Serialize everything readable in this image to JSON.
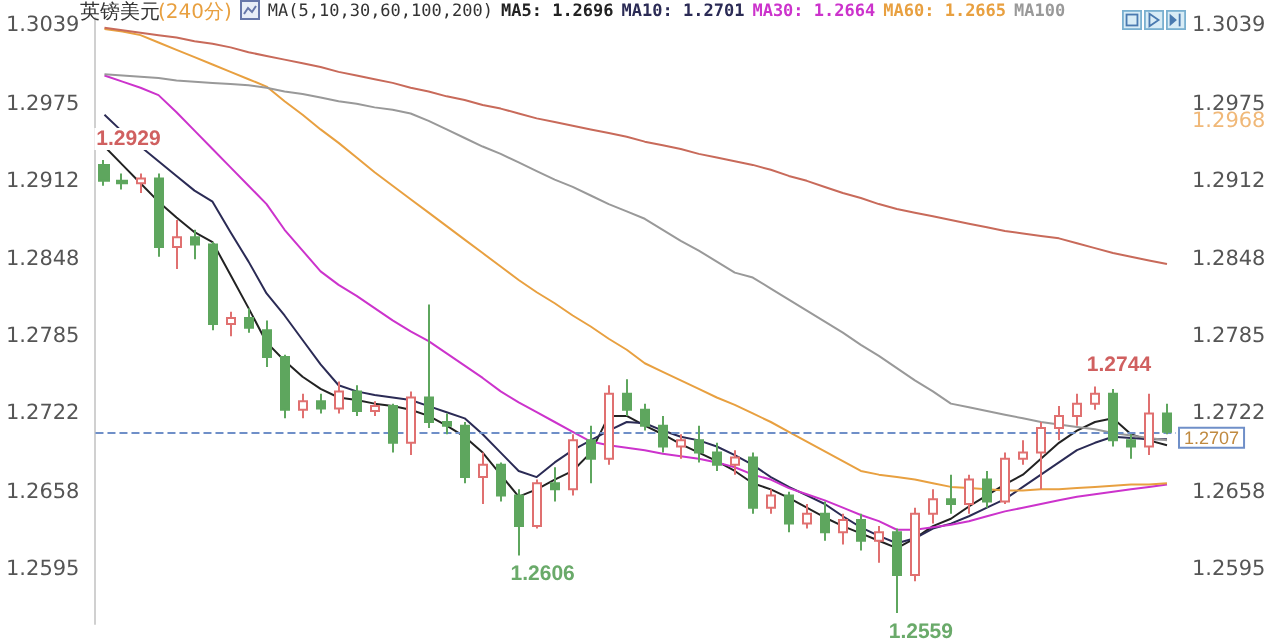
{
  "chart_data": {
    "type": "candlestick",
    "title": "英镑美元",
    "subtitle": "(240分)",
    "legend_title": "MA(5,10,30,60,100,200)",
    "legend": "top",
    "tick_labels": "y",
    "categories": [
      null,
      null,
      null,
      null,
      null,
      null,
      null,
      null,
      null,
      null,
      null,
      null,
      null,
      null,
      null,
      null,
      null,
      null,
      null,
      null,
      null,
      null,
      null,
      null,
      null,
      null,
      null,
      null,
      null,
      null,
      null,
      null,
      null,
      null,
      null,
      null,
      null,
      null,
      null,
      null,
      null,
      null,
      null,
      null,
      null,
      null,
      null,
      null,
      null,
      null,
      null,
      null,
      null,
      null,
      null,
      null,
      null,
      null,
      null,
      null
    ],
    "ylim": [
      1.255,
      1.3045
    ],
    "yticks": [
      1.3039,
      1.2975,
      1.2912,
      1.2848,
      1.2785,
      1.2722,
      1.2658,
      1.2595
    ],
    "y2lim": [
      1.255,
      1.3045
    ],
    "y2ticks": [
      1.3039,
      1.2975,
      1.2912,
      1.2848,
      1.2785,
      1.2722,
      1.2658,
      1.2595
    ],
    "ohlc": [
      [
        1.2925,
        1.2929,
        1.2908,
        1.2912
      ],
      [
        1.2912,
        1.2918,
        1.2905,
        1.291
      ],
      [
        1.291,
        1.2918,
        1.2902,
        1.2914
      ],
      [
        1.2914,
        1.2918,
        1.285,
        1.2858
      ],
      [
        1.2858,
        1.288,
        1.284,
        1.2866
      ],
      [
        1.2866,
        1.2872,
        1.2848,
        1.286
      ],
      [
        1.286,
        1.2862,
        1.279,
        1.2795
      ],
      [
        1.2795,
        1.2805,
        1.2785,
        1.28
      ],
      [
        1.28,
        1.2808,
        1.2788,
        1.2792
      ],
      [
        1.279,
        1.2798,
        1.276,
        1.2768
      ],
      [
        1.2768,
        1.277,
        1.2718,
        1.2725
      ],
      [
        1.2725,
        1.2738,
        1.2718,
        1.2732
      ],
      [
        1.2732,
        1.2738,
        1.2722,
        1.2726
      ],
      [
        1.2726,
        1.2748,
        1.2722,
        1.274
      ],
      [
        1.274,
        1.2745,
        1.272,
        1.2724
      ],
      [
        1.2724,
        1.2732,
        1.272,
        1.2728
      ],
      [
        1.2728,
        1.273,
        1.269,
        1.2698
      ],
      [
        1.2698,
        1.274,
        1.2688,
        1.2735
      ],
      [
        1.2735,
        1.2811,
        1.271,
        1.2715
      ],
      [
        1.2715,
        1.2722,
        1.2705,
        1.2712
      ],
      [
        1.2712,
        1.2715,
        1.2665,
        1.267
      ],
      [
        1.267,
        1.269,
        1.2648,
        1.268
      ],
      [
        1.268,
        1.2682,
        1.265,
        1.2655
      ],
      [
        1.2655,
        1.266,
        1.2606,
        1.263
      ],
      [
        1.263,
        1.2668,
        1.2628,
        1.2665
      ],
      [
        1.2665,
        1.2678,
        1.265,
        1.266
      ],
      [
        1.266,
        1.2705,
        1.2655,
        1.27
      ],
      [
        1.27,
        1.2712,
        1.2665,
        1.2685
      ],
      [
        1.2685,
        1.2745,
        1.268,
        1.2738
      ],
      [
        1.2738,
        1.275,
        1.272,
        1.2725
      ],
      [
        1.2725,
        1.273,
        1.2708,
        1.2712
      ],
      [
        1.2712,
        1.272,
        1.269,
        1.2695
      ],
      [
        1.2695,
        1.2705,
        1.2685,
        1.27
      ],
      [
        1.27,
        1.2712,
        1.2682,
        1.269
      ],
      [
        1.269,
        1.2698,
        1.2675,
        1.268
      ],
      [
        1.268,
        1.2692,
        1.2672,
        1.2686
      ],
      [
        1.2686,
        1.269,
        1.264,
        1.2645
      ],
      [
        1.2645,
        1.266,
        1.264,
        1.2655
      ],
      [
        1.2655,
        1.2658,
        1.2625,
        1.2632
      ],
      [
        1.2632,
        1.2648,
        1.2628,
        1.264
      ],
      [
        1.264,
        1.265,
        1.2618,
        1.2625
      ],
      [
        1.2625,
        1.264,
        1.2615,
        1.2635
      ],
      [
        1.2635,
        1.264,
        1.261,
        1.2618
      ],
      [
        1.2618,
        1.263,
        1.26,
        1.2625
      ],
      [
        1.2625,
        1.2628,
        1.2559,
        1.259
      ],
      [
        1.259,
        1.2645,
        1.2585,
        1.264
      ],
      [
        1.264,
        1.266,
        1.2632,
        1.2652
      ],
      [
        1.2652,
        1.2672,
        1.264,
        1.2648
      ],
      [
        1.2648,
        1.2672,
        1.264,
        1.2668
      ],
      [
        1.2668,
        1.2675,
        1.2645,
        1.265
      ],
      [
        1.265,
        1.269,
        1.2648,
        1.2685
      ],
      [
        1.2685,
        1.27,
        1.268,
        1.269
      ],
      [
        1.269,
        1.2715,
        1.266,
        1.271
      ],
      [
        1.271,
        1.2728,
        1.27,
        1.272
      ],
      [
        1.272,
        1.2738,
        1.2712,
        1.273
      ],
      [
        1.273,
        1.2744,
        1.2725,
        1.2738
      ],
      [
        1.2738,
        1.2742,
        1.2695,
        1.27
      ],
      [
        1.27,
        1.2705,
        1.2685,
        1.2695
      ],
      [
        1.2695,
        1.2738,
        1.2688,
        1.2722
      ],
      [
        1.2722,
        1.273,
        1.2705,
        1.2707
      ]
    ],
    "colors": [
      "#5ea65e",
      "#5ea65e",
      "#e07070",
      "#5ea65e",
      "#e07070",
      "#5ea65e",
      "#5ea65e",
      "#e07070",
      "#5ea65e",
      "#5ea65e",
      "#5ea65e",
      "#e07070",
      "#5ea65e",
      "#e07070",
      "#5ea65e",
      "#e07070",
      "#5ea65e",
      "#e07070",
      "#5ea65e",
      "#5ea65e",
      "#5ea65e",
      "#e07070",
      "#5ea65e",
      "#5ea65e",
      "#e07070",
      "#5ea65e",
      "#e07070",
      "#5ea65e",
      "#e07070",
      "#5ea65e",
      "#5ea65e",
      "#5ea65e",
      "#e07070",
      "#5ea65e",
      "#5ea65e",
      "#e07070",
      "#5ea65e",
      "#e07070",
      "#5ea65e",
      "#e07070",
      "#5ea65e",
      "#e07070",
      "#5ea65e",
      "#e07070",
      "#5ea65e",
      "#e07070",
      "#e07070",
      "#5ea65e",
      "#e07070",
      "#5ea65e",
      "#e07070",
      "#e07070",
      "#e07070",
      "#e07070",
      "#e07070",
      "#e07070",
      "#5ea65e",
      "#5ea65e",
      "#e07070",
      "#5ea65e"
    ],
    "series": [
      {
        "name": "MA5: 1.2696",
        "type": "line",
        "color": "#222222",
        "values": [
          1.294,
          1.2925,
          1.291,
          1.2895,
          1.2882,
          1.287,
          1.2862,
          1.2835,
          1.2808,
          1.278,
          1.2765,
          1.2752,
          1.2742,
          1.2735,
          1.2733,
          1.273,
          1.2728,
          1.2725,
          1.272,
          1.2712,
          1.2703,
          1.269,
          1.2672,
          1.2654,
          1.266,
          1.2668,
          1.2675,
          1.269,
          1.272,
          1.272,
          1.2712,
          1.2705,
          1.2697,
          1.269,
          1.2683,
          1.2675,
          1.2665,
          1.266,
          1.2653,
          1.2645,
          1.2637,
          1.263,
          1.2624,
          1.2618,
          1.2612,
          1.262,
          1.263,
          1.2636,
          1.2646,
          1.2655,
          1.2664,
          1.2672,
          1.2685,
          1.2698,
          1.2708,
          1.2715,
          1.2718,
          1.2705,
          1.27,
          1.2696
        ]
      },
      {
        "name": "MA10: 1.2701",
        "type": "line",
        "color": "#2b2b55",
        "values": [
          1.2966,
          1.2952,
          1.294,
          1.2928,
          1.2916,
          1.2904,
          1.2895,
          1.287,
          1.2846,
          1.282,
          1.2802,
          1.2782,
          1.2762,
          1.2745,
          1.274,
          1.2737,
          1.2735,
          1.2733,
          1.2728,
          1.2723,
          1.2718,
          1.2705,
          1.269,
          1.2675,
          1.267,
          1.2682,
          1.2692,
          1.27,
          1.2708,
          1.2715,
          1.2714,
          1.2708,
          1.2703,
          1.27,
          1.2695,
          1.2688,
          1.268,
          1.267,
          1.2662,
          1.2655,
          1.2648,
          1.2638,
          1.2629,
          1.2622,
          1.2616,
          1.262,
          1.2628,
          1.2632,
          1.2638,
          1.2645,
          1.2652,
          1.2662,
          1.2672,
          1.2682,
          1.2692,
          1.2698,
          1.2703,
          1.2702,
          1.2701,
          1.2701
        ]
      },
      {
        "name": "MA30: 1.2664",
        "type": "line",
        "color": "#cc33cc",
        "values": [
          1.2998,
          1.2993,
          1.2988,
          1.2982,
          1.2968,
          1.2953,
          1.2938,
          1.2923,
          1.2908,
          1.2893,
          1.2872,
          1.2855,
          1.2838,
          1.2827,
          1.2818,
          1.2808,
          1.2798,
          1.2789,
          1.2781,
          1.2771,
          1.2761,
          1.2751,
          1.274,
          1.2731,
          1.2723,
          1.2715,
          1.2707,
          1.2699,
          1.2696,
          1.2694,
          1.2692,
          1.2689,
          1.2687,
          1.2685,
          1.2682,
          1.2678,
          1.2672,
          1.2668,
          1.2661,
          1.2656,
          1.2651,
          1.2645,
          1.2639,
          1.2634,
          1.2627,
          1.2627,
          1.2629,
          1.2631,
          1.2634,
          1.2638,
          1.2642,
          1.2645,
          1.2648,
          1.2651,
          1.2654,
          1.2656,
          1.2658,
          1.266,
          1.2662,
          1.2664
        ]
      },
      {
        "name": "MA60: 1.2665",
        "type": "line",
        "color": "#e8a040",
        "values": [
          1.3036,
          1.3034,
          1.3031,
          1.3025,
          1.3019,
          1.3013,
          1.3007,
          1.3001,
          1.2995,
          1.2989,
          1.2977,
          1.2966,
          1.2954,
          1.2943,
          1.2931,
          1.2919,
          1.2908,
          1.2897,
          1.2886,
          1.2875,
          1.2864,
          1.2853,
          1.2842,
          1.2831,
          1.2821,
          1.2812,
          1.2802,
          1.2793,
          1.2783,
          1.2774,
          1.2763,
          1.2756,
          1.2749,
          1.2742,
          1.2735,
          1.2729,
          1.2722,
          1.2715,
          1.2707,
          1.2699,
          1.2691,
          1.2683,
          1.2675,
          1.2672,
          1.267,
          1.2668,
          1.2665,
          1.2662,
          1.2661,
          1.266,
          1.2659,
          1.2659,
          1.266,
          1.266,
          1.2661,
          1.2662,
          1.2663,
          1.2664,
          1.2664,
          1.2665
        ]
      },
      {
        "name": "MA100",
        "type": "line",
        "color": "#999999",
        "values": [
          1.2999,
          1.2998,
          1.2997,
          1.2996,
          1.2994,
          1.2993,
          1.2992,
          1.2991,
          1.299,
          1.2988,
          1.2985,
          1.2983,
          1.298,
          1.2977,
          1.2975,
          1.2972,
          1.297,
          1.2967,
          1.2961,
          1.2954,
          1.2947,
          1.294,
          1.2934,
          1.2927,
          1.292,
          1.2913,
          1.2907,
          1.29,
          1.2893,
          1.2887,
          1.2881,
          1.2872,
          1.2863,
          1.2855,
          1.2846,
          1.2837,
          1.2833,
          1.2824,
          1.2815,
          1.2806,
          1.2797,
          1.2788,
          1.2778,
          1.2769,
          1.2759,
          1.2749,
          1.274,
          1.273,
          1.2727,
          1.2724,
          1.2721,
          1.2718,
          1.2715,
          1.2713,
          1.2711,
          1.2709,
          1.2706,
          1.2704,
          1.2702,
          1.27
        ]
      },
      {
        "type": "line",
        "color": "#c86a5a",
        "values": [
          1.3037,
          1.3035,
          1.3033,
          1.3031,
          1.3029,
          1.3026,
          1.3024,
          1.3021,
          1.3017,
          1.3014,
          1.3011,
          1.3008,
          1.3005,
          1.3001,
          1.2998,
          1.2995,
          1.2992,
          1.2988,
          1.2985,
          1.2981,
          1.2978,
          1.2974,
          1.2971,
          1.2967,
          1.2963,
          1.296,
          1.2957,
          1.2954,
          1.2951,
          1.2948,
          1.2944,
          1.2941,
          1.2938,
          1.2934,
          1.2931,
          1.2928,
          1.2925,
          1.2921,
          1.2916,
          1.2912,
          1.2907,
          1.2902,
          1.2898,
          1.2893,
          1.2889,
          1.2886,
          1.2883,
          1.288,
          1.2877,
          1.2874,
          1.2871,
          1.2869,
          1.2867,
          1.2865,
          1.2861,
          1.2857,
          1.2853,
          1.285,
          1.2847,
          1.2844
        ]
      }
    ],
    "ref_lines": [
      {
        "axis": "y",
        "value": 1.2707,
        "label": "1.2707",
        "color": "#6f8fc8",
        "line_style": "dashed"
      }
    ],
    "annotations": [
      {
        "text": "1.2929",
        "y": 1.2929
      },
      "1.2606",
      "1.2559",
      {
        "text": "1.2744",
        "y": 1.2744
      },
      "1.2968"
    ]
  }
}
